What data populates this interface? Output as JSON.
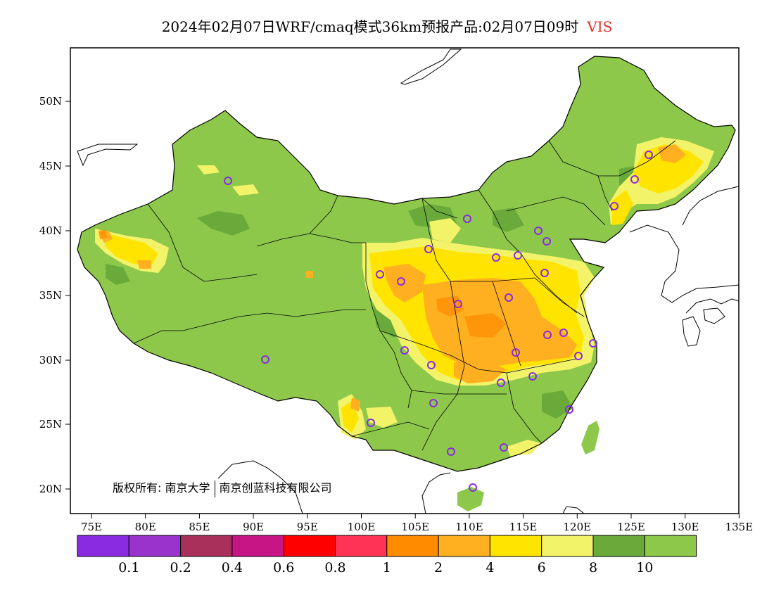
{
  "title": {
    "main": "2024年02月07日WRF/cmaq模式36km预报产品:02月07日09时",
    "variable": "VIS"
  },
  "axes": {
    "lon_labels": [
      "75E",
      "80E",
      "85E",
      "90E",
      "95E",
      "100E",
      "105E",
      "110E",
      "115E",
      "120E",
      "125E",
      "130E",
      "135E"
    ],
    "lat_labels": [
      "50N",
      "45N",
      "40N",
      "35N",
      "30N",
      "25N",
      "20N"
    ]
  },
  "colorbar": {
    "colors": [
      "#8a2be2",
      "#9933cc",
      "#a8305a",
      "#c71585",
      "#ff0000",
      "#ff3355",
      "#ff8c00",
      "#ffb020",
      "#ffe400",
      "#f3f36a",
      "#6aaa3a",
      "#8dc84b"
    ],
    "labels": [
      "0.1",
      "0.2",
      "0.4",
      "0.6",
      "0.8",
      "1",
      "2",
      "4",
      "6",
      "8",
      "10"
    ]
  },
  "copyright": {
    "prefix": "版权所有:",
    "org1": "南京大学",
    "org2": "南京创蓝科技有限公司"
  },
  "colors": {
    "land_default": "#8dc84b",
    "stations": "#8a2be2"
  }
}
